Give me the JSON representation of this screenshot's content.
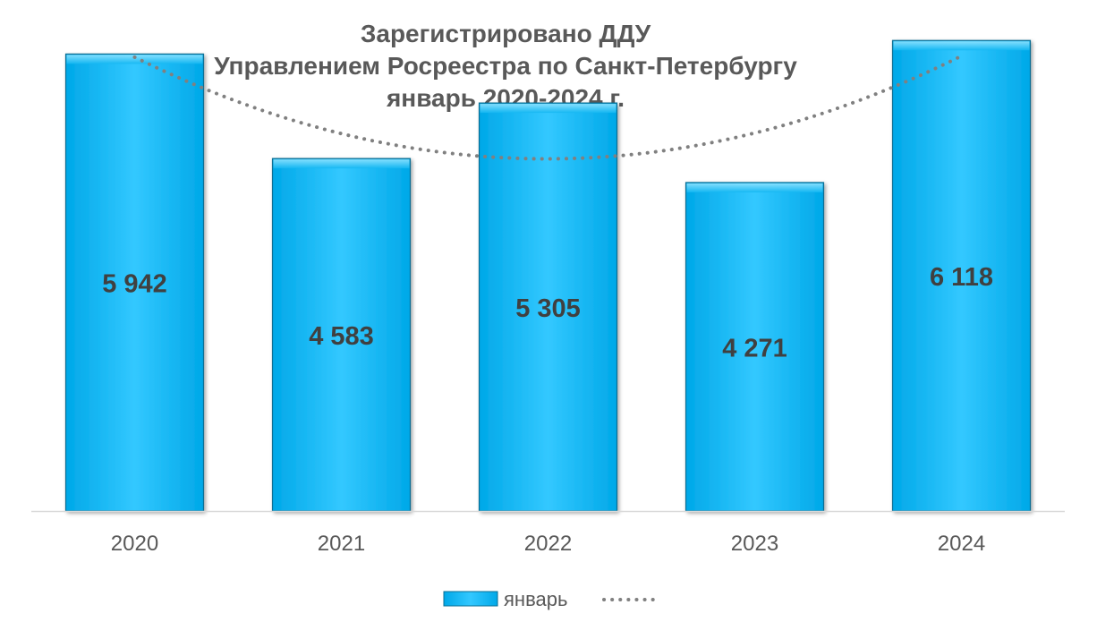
{
  "chart_data": {
    "type": "bar",
    "title": [
      "Зарегистрировано ДДУ",
      "Управлением Росреестра по Санкт-Петербургу",
      "январь 2020-2024 г."
    ],
    "categories": [
      "2020",
      "2021",
      "2022",
      "2023",
      "2024"
    ],
    "series": [
      {
        "name": "январь",
        "values": [
          5942,
          4583,
          5305,
          4271,
          6118
        ],
        "data_labels": [
          "5 942",
          "4 583",
          "5 305",
          "4 271",
          "6 118"
        ],
        "color": "#00B0F0"
      }
    ],
    "trendline": {
      "type": "polynomial",
      "style": "dotted",
      "color": "#808080",
      "legend_label": ""
    },
    "ylim": [
      0,
      6400
    ],
    "grid": false,
    "legend_position": "bottom",
    "xlabel": "",
    "ylabel": ""
  }
}
